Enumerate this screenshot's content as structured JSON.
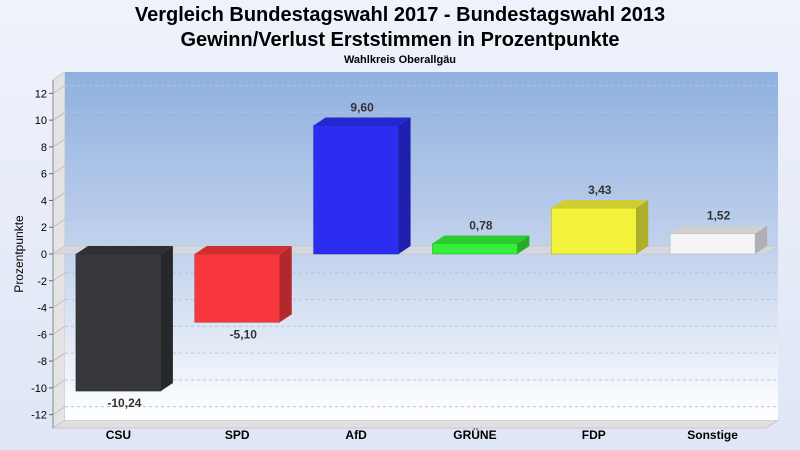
{
  "chart_data": {
    "type": "bar",
    "title": "Vergleich Bundestagswahl 2017 - Bundestagswahl 2013",
    "subtitle": "Gewinn/Verlust Erststimmen in Prozentpunkte",
    "subtitle2": "Wahlkreis Oberallgäu",
    "ylabel": "Prozentpunkte",
    "xlabel": "",
    "ylim": [
      -13,
      13
    ],
    "yticks": [
      12,
      10,
      8,
      6,
      4,
      2,
      0,
      -2,
      -4,
      -6,
      -8,
      -10,
      -12
    ],
    "grid": true,
    "categories": [
      "CSU",
      "SPD",
      "AfD",
      "GRÜNE",
      "FDP",
      "Sonstige"
    ],
    "values": [
      -10.24,
      -5.1,
      9.6,
      0.78,
      3.43,
      1.52
    ],
    "value_labels": [
      "-10,24",
      "-5,10",
      "9,60",
      "0,78",
      "3,43",
      "1,52"
    ],
    "colors": [
      "#36383c",
      "#f7373c",
      "#2d2df2",
      "#35ef3a",
      "#f2f23a",
      "#f5f5f7"
    ]
  }
}
